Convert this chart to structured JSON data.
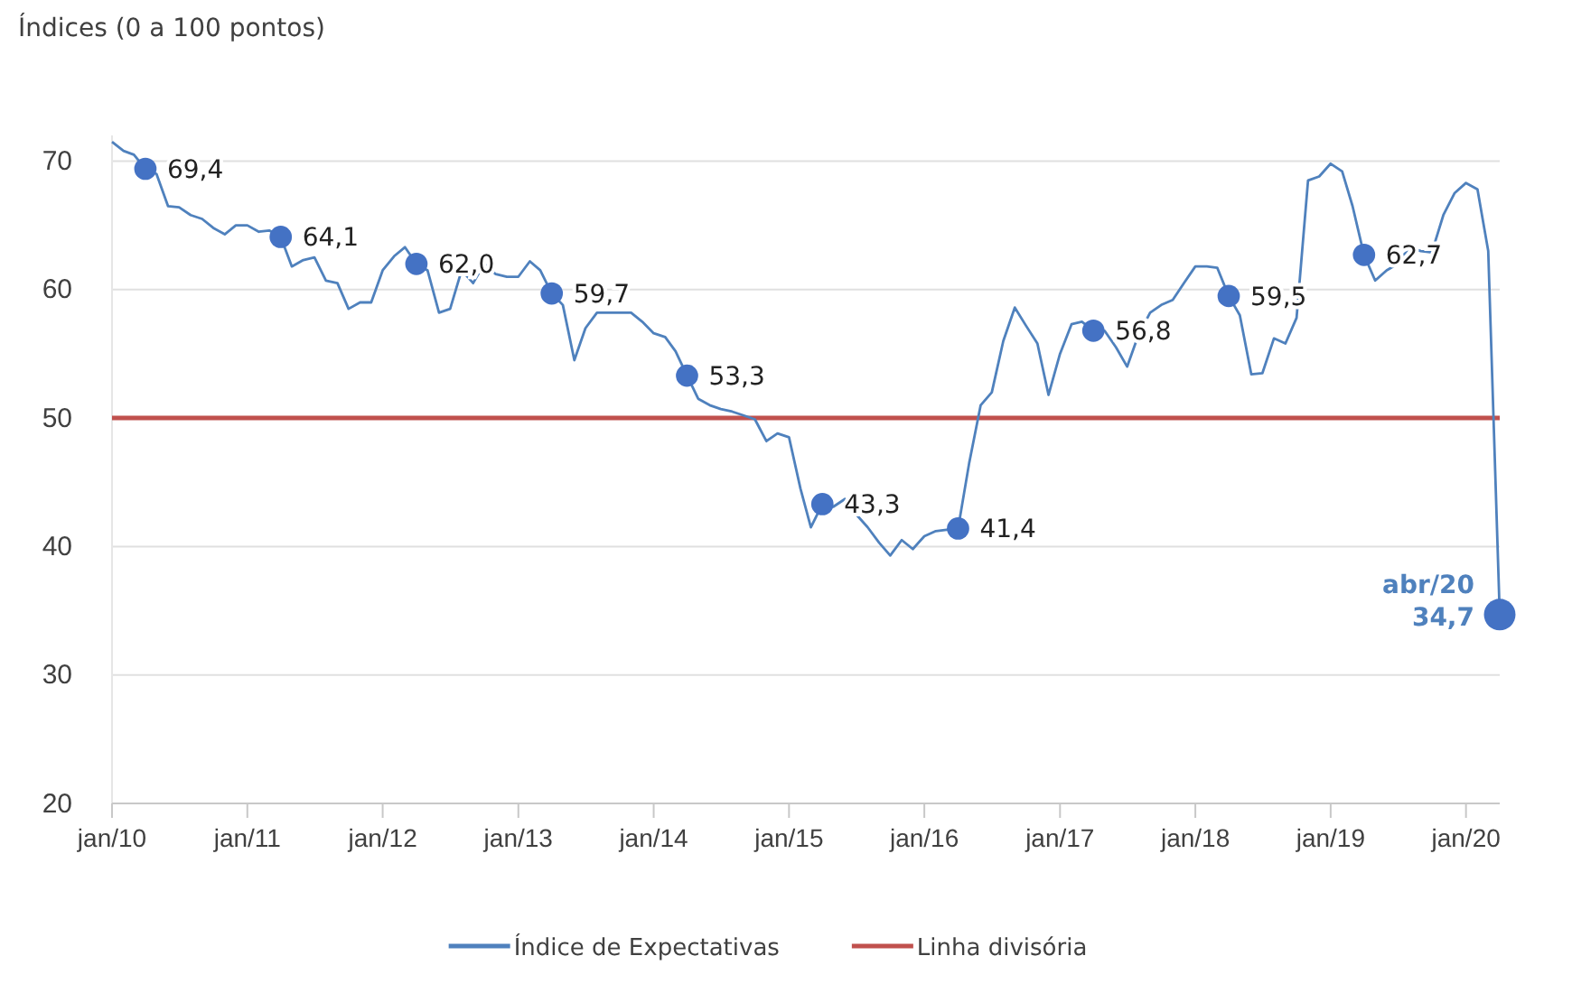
{
  "chart_data": {
    "type": "line",
    "title": "Índices (0 a 100 pontos)",
    "x": [
      "2010-01",
      "2010-02",
      "2010-03",
      "2010-04",
      "2010-05",
      "2010-06",
      "2010-07",
      "2010-08",
      "2010-09",
      "2010-10",
      "2010-11",
      "2010-12",
      "2011-01",
      "2011-02",
      "2011-03",
      "2011-04",
      "2011-05",
      "2011-06",
      "2011-07",
      "2011-08",
      "2011-09",
      "2011-10",
      "2011-11",
      "2011-12",
      "2012-01",
      "2012-02",
      "2012-03",
      "2012-04",
      "2012-05",
      "2012-06",
      "2012-07",
      "2012-08",
      "2012-09",
      "2012-10",
      "2012-11",
      "2012-12",
      "2013-01",
      "2013-02",
      "2013-03",
      "2013-04",
      "2013-05",
      "2013-06",
      "2013-07",
      "2013-08",
      "2013-09",
      "2013-10",
      "2013-11",
      "2013-12",
      "2014-01",
      "2014-02",
      "2014-03",
      "2014-04",
      "2014-05",
      "2014-06",
      "2014-07",
      "2014-08",
      "2014-09",
      "2014-10",
      "2014-11",
      "2014-12",
      "2015-01",
      "2015-02",
      "2015-03",
      "2015-04",
      "2015-05",
      "2015-06",
      "2015-07",
      "2015-08",
      "2015-09",
      "2015-10",
      "2015-11",
      "2015-12",
      "2016-01",
      "2016-02",
      "2016-03",
      "2016-04",
      "2016-05",
      "2016-06",
      "2016-07",
      "2016-08",
      "2016-09",
      "2016-10",
      "2016-11",
      "2016-12",
      "2017-01",
      "2017-02",
      "2017-03",
      "2017-04",
      "2017-05",
      "2017-06",
      "2017-07",
      "2017-08",
      "2017-09",
      "2017-10",
      "2017-11",
      "2017-12",
      "2018-01",
      "2018-02",
      "2018-03",
      "2018-04",
      "2018-05",
      "2018-06",
      "2018-07",
      "2018-08",
      "2018-09",
      "2018-10",
      "2018-11",
      "2018-12",
      "2019-01",
      "2019-02",
      "2019-03",
      "2019-04",
      "2019-05",
      "2019-06",
      "2019-07",
      "2019-08",
      "2019-09",
      "2019-10",
      "2019-11",
      "2019-12",
      "2020-01",
      "2020-02",
      "2020-03",
      "2020-04"
    ],
    "series": [
      {
        "name": "Índice de Expectativas",
        "color": "#4f81bd",
        "values": [
          71.5,
          70.8,
          70.5,
          69.4,
          69.0,
          66.5,
          66.4,
          65.8,
          65.5,
          64.8,
          64.3,
          65.0,
          65.0,
          64.5,
          64.6,
          64.1,
          61.8,
          62.3,
          62.5,
          60.7,
          60.5,
          58.5,
          59.0,
          59.0,
          61.5,
          62.6,
          63.3,
          62.0,
          61.5,
          58.2,
          58.5,
          61.5,
          60.5,
          62.0,
          61.2,
          61.0,
          61.0,
          62.2,
          61.5,
          59.7,
          58.8,
          54.5,
          57.0,
          58.2,
          58.2,
          58.2,
          58.2,
          57.5,
          56.6,
          56.3,
          55.2,
          53.3,
          51.5,
          51.0,
          50.7,
          50.5,
          50.2,
          49.9,
          48.2,
          48.8,
          48.5,
          44.5,
          41.5,
          43.3,
          43.1,
          43.7,
          42.5,
          41.5,
          40.3,
          39.3,
          40.5,
          39.8,
          40.8,
          41.2,
          41.3,
          41.4,
          46.5,
          51.0,
          52.0,
          56.0,
          58.6,
          57.2,
          55.8,
          51.8,
          55.0,
          57.3,
          57.5,
          56.8,
          56.8,
          55.5,
          54.0,
          56.5,
          58.2,
          58.8,
          59.2,
          60.5,
          61.8,
          61.8,
          61.7,
          59.5,
          58.0,
          53.4,
          53.5,
          56.2,
          55.8,
          57.8,
          68.5,
          68.8,
          69.8,
          69.2,
          66.5,
          62.7,
          60.7,
          61.5,
          62.0,
          63.3,
          63.0,
          62.9,
          65.8,
          67.5,
          68.3,
          67.8,
          63.0,
          34.7
        ],
        "marker": null
      },
      {
        "type": "scatter",
        "color": "#4472c4",
        "x": [
          "2010-04",
          "2011-04",
          "2012-04",
          "2013-04",
          "2014-04",
          "2015-04",
          "2016-04",
          "2017-04",
          "2018-04",
          "2019-04",
          "2020-04"
        ],
        "values": [
          69.4,
          64.1,
          62.0,
          59.7,
          53.3,
          43.3,
          41.4,
          56.8,
          59.5,
          62.7,
          34.7
        ],
        "sizes": [
          0.5,
          0.5,
          0.5,
          0.5,
          0.5,
          0.5,
          0.5,
          0.5,
          0.5,
          0.5,
          1
        ],
        "value_labels": [
          "69,4",
          "64,1",
          "62,0",
          "59,7",
          "53,3",
          "43,3",
          "41,4",
          "56,8",
          "59,5",
          "62,7",
          "34,7"
        ]
      }
    ],
    "annotations": [
      {
        "text": "abr/20",
        "x": "2020-04",
        "y": 34.7
      }
    ],
    "ref_lines": [
      {
        "axis": "y",
        "value": 50,
        "label": "Linha divisória",
        "color": "#c0504d"
      }
    ],
    "xlim": [
      "2010-01",
      "2020-04"
    ],
    "xticks": [
      {
        "value": "2010-01",
        "label": "jan/10"
      },
      {
        "value": "2011-01",
        "label": "jan/11"
      },
      {
        "value": "2012-01",
        "label": "jan/12"
      },
      {
        "value": "2013-01",
        "label": "jan/13"
      },
      {
        "value": "2014-01",
        "label": "jan/14"
      },
      {
        "value": "2015-01",
        "label": "jan/15"
      },
      {
        "value": "2016-01",
        "label": "jan/16"
      },
      {
        "value": "2017-01",
        "label": "jan/17"
      },
      {
        "value": "2018-01",
        "label": "jan/18"
      },
      {
        "value": "2019-01",
        "label": "jan/19"
      },
      {
        "value": "2020-01",
        "label": "jan/20"
      }
    ],
    "ylim": [
      20,
      72
    ],
    "yticks": [
      20,
      30,
      40,
      50,
      60,
      70
    ],
    "grid": "y",
    "legend": "bottom",
    "marker": "circle",
    "line_style": "solid"
  }
}
